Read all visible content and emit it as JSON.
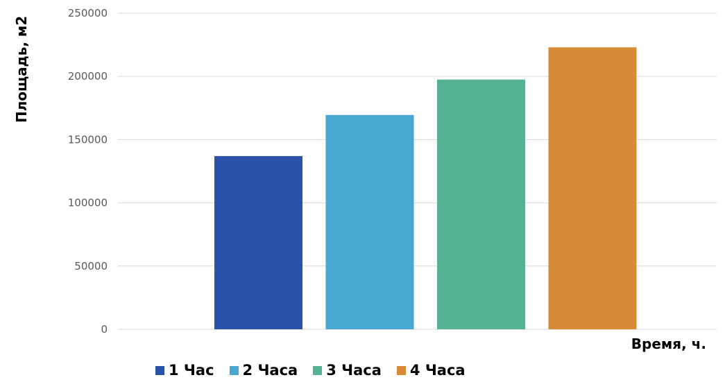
{
  "chart_data": {
    "type": "bar",
    "categories": [
      "1 Час",
      "2 Часа",
      "3 Часа",
      "4 Часа"
    ],
    "values": [
      137000,
      169500,
      197500,
      223000
    ],
    "colors": [
      "#2a52a8",
      "#48a8d2",
      "#55b392",
      "#d78b37"
    ],
    "title": "",
    "xlabel": "Время, ч.",
    "ylabel": "Площадь, м2",
    "ylim": [
      0,
      250000
    ],
    "yticks": [
      "0",
      "50000",
      "100000",
      "150000",
      "200000",
      "250000"
    ],
    "grid": true,
    "legend": "bottom"
  }
}
